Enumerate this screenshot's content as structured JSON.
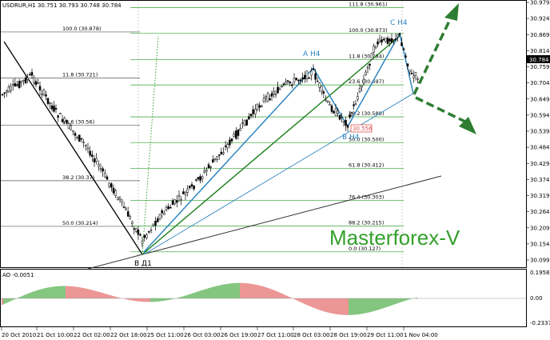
{
  "chart_data": {
    "type": "candlestick",
    "symbol_header": "USDRUR,H1  30.751 30.793 30.748 30.784",
    "current_price_label": "30.784",
    "price_axis": [
      "30.979",
      "30.924",
      "30.869",
      "30.814",
      "30.759",
      "30.704",
      "30.649",
      "30.594",
      "30.539",
      "30.484",
      "30.429",
      "30.374",
      "30.319",
      "30.264",
      "30.209",
      "30.154",
      "30.099"
    ],
    "time_axis": [
      "20 Oct 2010",
      "21 Oct 10:00",
      "22 Oct 02:00",
      "22 Oct 18:00",
      "25 Oct 11:00",
      "26 Oct 03:00",
      "26 Oct 19:00",
      "27 Oct 11:00",
      "28 Oct 03:00",
      "28 Oct 19:00",
      "29 Oct 11:00",
      "1 Nov 04:00"
    ],
    "fib_left": [
      {
        "label": "100.0 (30.878)",
        "price": 30.878
      },
      {
        "label": "11.8 (30.721)",
        "price": 30.721
      },
      {
        "label": "23.6 (30.56)",
        "price": 30.56
      },
      {
        "label": "38.2 (30.37)",
        "price": 30.37
      },
      {
        "label": "50.0 (30.214)",
        "price": 30.214
      }
    ],
    "fib_right": [
      {
        "label": "111.8 (30.961)",
        "price": 30.961
      },
      {
        "label": "100.0 (30.873)",
        "price": 30.873
      },
      {
        "label": "11.8 (30.784)",
        "price": 30.784
      },
      {
        "label": "23.6 (30.697)",
        "price": 30.697
      },
      {
        "label": "38.2 (30.588)",
        "price": 30.588
      },
      {
        "label": "50.0 (30.500)",
        "price": 30.5
      },
      {
        "label": "61.8 (30.412)",
        "price": 30.412
      },
      {
        "label": "76.4 (30.303)",
        "price": 30.303
      },
      {
        "label": "88.2 (30.215)",
        "price": 30.215
      },
      {
        "label": "0.0 (30.127)",
        "price": 30.127
      }
    ],
    "price_box": "30.556",
    "wave_labels": {
      "a": "A H4",
      "b": "B H4",
      "c": "C H4",
      "bd1": "B Д1"
    },
    "watermark": "Masterforex-V",
    "indicator": {
      "name": "AO -0.0051",
      "axis": [
        "0.1958",
        "0.00",
        "-0.2337"
      ]
    }
  },
  "colors": {
    "up_bar": "#33a02c",
    "down_bar": "#e05050",
    "fib_line": "#4fae4f",
    "wave": "#2e86c1",
    "trend": "#1a7f1a",
    "arrow": "#2e7d32"
  }
}
